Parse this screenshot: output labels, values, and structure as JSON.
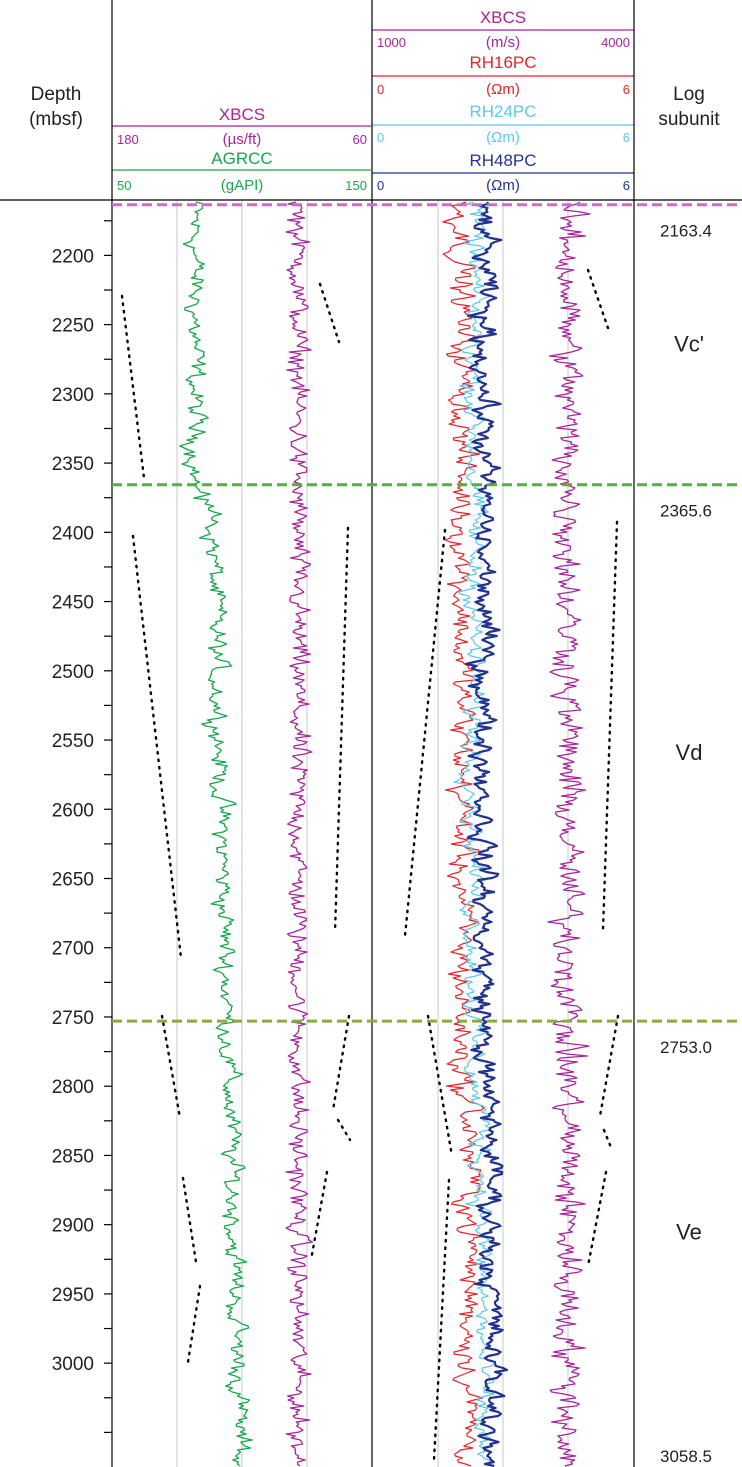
{
  "chart_data": {
    "type": "line",
    "title": "",
    "depth_axis": {
      "label_line1": "Depth",
      "label_line2": "(mbsf)",
      "range": [
        2160,
        3075
      ],
      "ticks": [
        2200,
        2250,
        2300,
        2350,
        2400,
        2450,
        2500,
        2550,
        2600,
        2650,
        2700,
        2750,
        2800,
        2850,
        2900,
        2950,
        3000
      ],
      "tick_labels": [
        "2200",
        "2250",
        "2300",
        "2350",
        "2400",
        "2450",
        "2500",
        "2550",
        "2600",
        "2650",
        "2700",
        "2750",
        "2800",
        "2850",
        "2900",
        "2950",
        "3000"
      ]
    },
    "subunit_column": {
      "title_line1": "Log",
      "title_line2": "subunit",
      "boundaries": [
        {
          "depth": 2163.4,
          "label": "2163.4",
          "color": "#c86ec8"
        },
        {
          "depth": 2365.6,
          "label": "2365.6",
          "color": "#5aaa46"
        },
        {
          "depth": 2753.0,
          "label": "2753.0",
          "color": "#8aaa3a"
        },
        {
          "depth": 3058.5,
          "label": "3058.5",
          "color": ""
        }
      ],
      "units": [
        {
          "label": "Vc'",
          "top": 2163.4,
          "bottom": 2365.6
        },
        {
          "label": "Vd",
          "top": 2365.6,
          "bottom": 2753.0
        },
        {
          "label": "Ve",
          "top": 2753.0,
          "bottom": 3058.5
        }
      ]
    },
    "tracks": [
      {
        "id": "track1",
        "curves": [
          {
            "name": "XBCS",
            "unit": "(µs/ft)",
            "scale_left": "180",
            "scale_right": "60",
            "range": [
              180,
              60
            ],
            "color": "#a8249a"
          },
          {
            "name": "AGRCC",
            "unit": "(gAPI)",
            "scale_left": "50",
            "scale_right": "150",
            "range": [
              50,
              150
            ],
            "color": "#19a64a"
          }
        ]
      },
      {
        "id": "track2",
        "curves": [
          {
            "name": "XBCS",
            "unit": "(m/s)",
            "scale_left": "1000",
            "scale_right": "4000",
            "range": [
              1000,
              4000
            ],
            "color": "#a8249a"
          },
          {
            "name": "RH16PC",
            "unit": "(Ωm)",
            "scale_left": "0",
            "scale_right": "6",
            "range": [
              0,
              6
            ],
            "color": "#e8232a"
          },
          {
            "name": "RH24PC",
            "unit": "(Ωm)",
            "scale_left": "0",
            "scale_right": "6",
            "range": [
              0,
              6
            ],
            "color": "#5cc8ec"
          },
          {
            "name": "RH48PC",
            "unit": "(Ωm)",
            "scale_left": "0",
            "scale_right": "6",
            "range": [
              0,
              6
            ],
            "color": "#23328e"
          }
        ]
      }
    ],
    "colors": {
      "xbcs": "#a8249a",
      "agrcc": "#19a64a",
      "rh16": "#e8232a",
      "rh24": "#5cc8ec",
      "rh48": "#23328e",
      "gridline": "#c8c8c8",
      "trendline": "#000000"
    }
  }
}
